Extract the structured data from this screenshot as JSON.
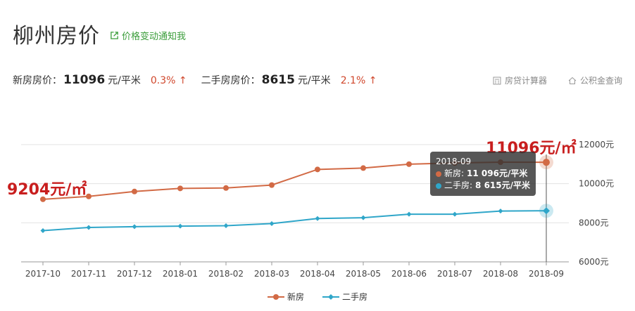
{
  "header": {
    "title": "柳州房价",
    "notify_label": "价格变动通知我"
  },
  "prices": {
    "new_label": "新房房价：",
    "new_value": "11096",
    "new_unit": "元/平米",
    "new_change": "0.3%",
    "second_label": "二手房房价：",
    "second_value": "8615",
    "second_unit": "元/平米",
    "second_change": "2.1%"
  },
  "tools": {
    "loan_calc": "房贷计算器",
    "fund_query": "公积金查询"
  },
  "annotations": {
    "start_label": "9204元/㎡",
    "end_label": "11096元/㎡"
  },
  "tooltip": {
    "date": "2018-09",
    "new_line": "新房: ",
    "new_value": "11 096元/平米",
    "second_line": "二手房: ",
    "second_value": "8 615元/平米"
  },
  "colors": {
    "new": "#d26a45",
    "second": "#2fa6c9",
    "up_arrow": "#d0472c"
  },
  "chart_data": {
    "type": "line",
    "categories": [
      "2017-10",
      "2017-11",
      "2017-12",
      "2018-01",
      "2018-02",
      "2018-03",
      "2018-04",
      "2018-05",
      "2018-06",
      "2018-07",
      "2018-08",
      "2018-09"
    ],
    "series": [
      {
        "name": "新房",
        "values": [
          9204,
          9350,
          9600,
          9760,
          9780,
          9930,
          10730,
          10800,
          11000,
          11060,
          11100,
          11096
        ]
      },
      {
        "name": "二手房",
        "values": [
          7600,
          7760,
          7800,
          7830,
          7850,
          7960,
          8220,
          8260,
          8440,
          8440,
          8600,
          8615
        ]
      }
    ],
    "yticks": [
      "6000元",
      "8000元",
      "10000元",
      "12000元"
    ],
    "ytick_values": [
      6000,
      8000,
      10000,
      12000
    ],
    "ylim": [
      6000,
      12000
    ],
    "legend": [
      "新房",
      "二手房"
    ],
    "legend_position": "bottom",
    "grid": true,
    "highlight_index": 11
  }
}
